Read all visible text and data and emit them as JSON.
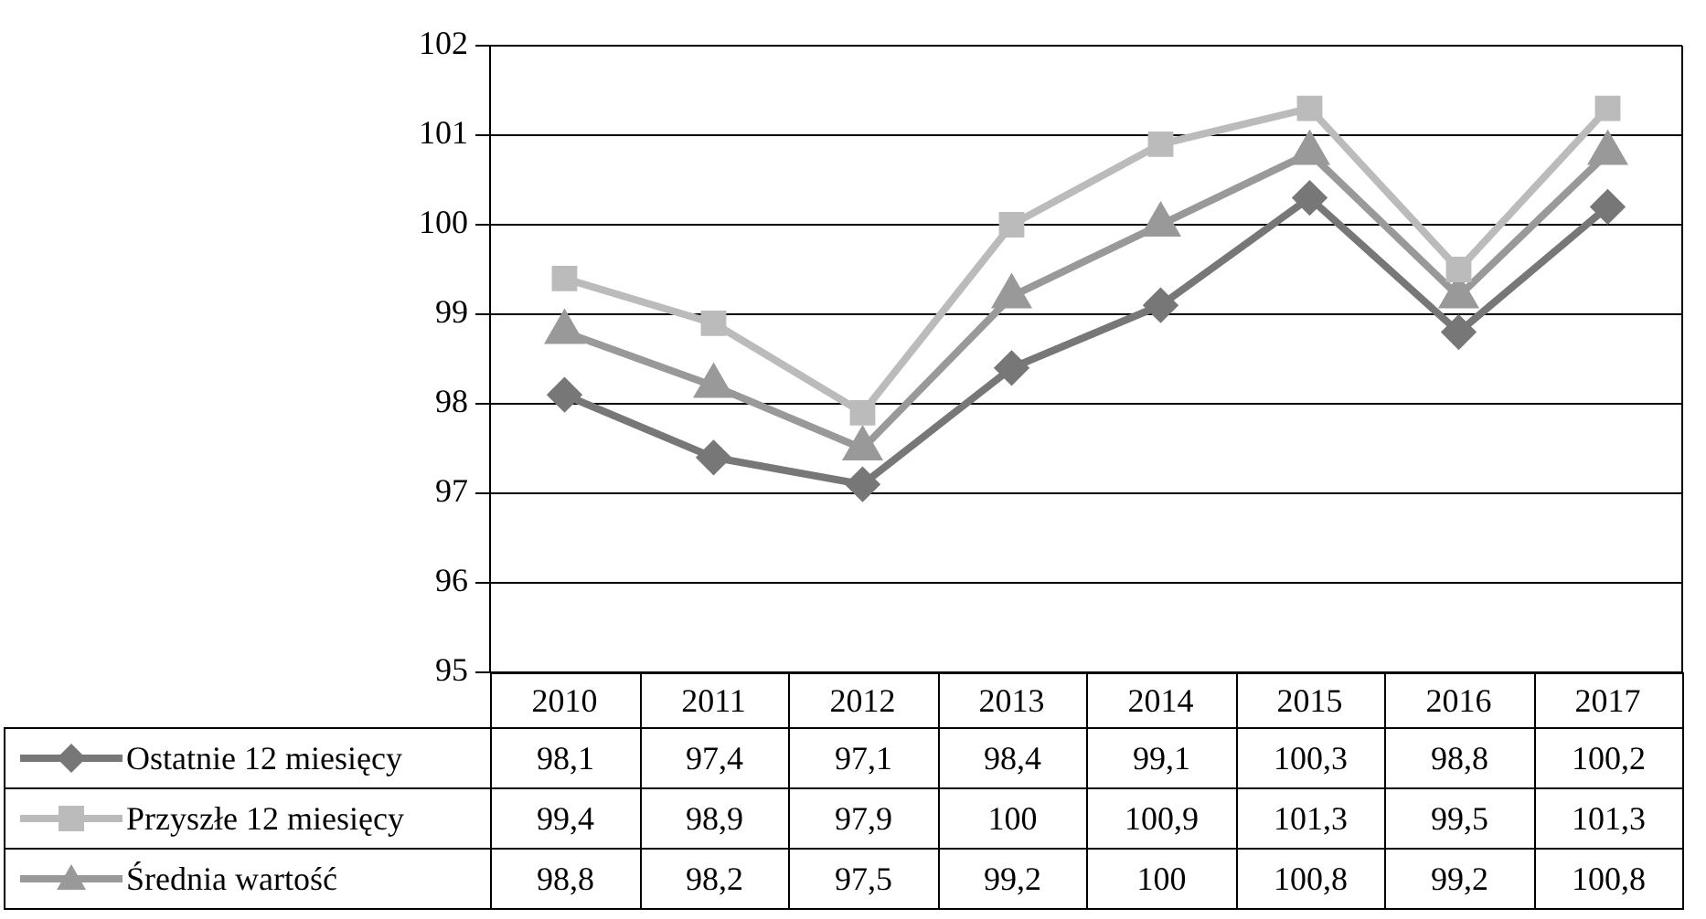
{
  "chart_data": {
    "type": "line",
    "categories": [
      "2010",
      "2011",
      "2012",
      "2013",
      "2014",
      "2015",
      "2016",
      "2017"
    ],
    "series": [
      {
        "name": "Ostatnie 12 miesięcy",
        "color": "#777777",
        "marker": "diamond",
        "values": [
          98.1,
          97.4,
          97.1,
          98.4,
          99.1,
          100.3,
          98.8,
          100.2
        ],
        "value_labels": [
          "98,1",
          "97,4",
          "97,1",
          "98,4",
          "99,1",
          "100,3",
          "98,8",
          "100,2"
        ]
      },
      {
        "name": "Przyszłe 12 miesięcy",
        "color": "#bbbbbb",
        "marker": "square",
        "values": [
          99.4,
          98.9,
          97.9,
          100,
          100.9,
          101.3,
          99.5,
          101.3
        ],
        "value_labels": [
          "99,4",
          "98,9",
          "97,9",
          "100",
          "100,9",
          "101,3",
          "99,5",
          "101,3"
        ]
      },
      {
        "name": "Średnia wartość",
        "color": "#999999",
        "marker": "triangle",
        "values": [
          98.8,
          98.2,
          97.5,
          99.2,
          100,
          100.8,
          99.2,
          100.8
        ],
        "value_labels": [
          "98,8",
          "98,2",
          "97,5",
          "99,2",
          "100",
          "100,8",
          "99,2",
          "100,8"
        ]
      }
    ],
    "ylim": [
      95,
      102
    ],
    "yticks": [
      95,
      96,
      97,
      98,
      99,
      100,
      101,
      102
    ],
    "grid": "y",
    "legend": "bottom",
    "line_style": "solid"
  }
}
